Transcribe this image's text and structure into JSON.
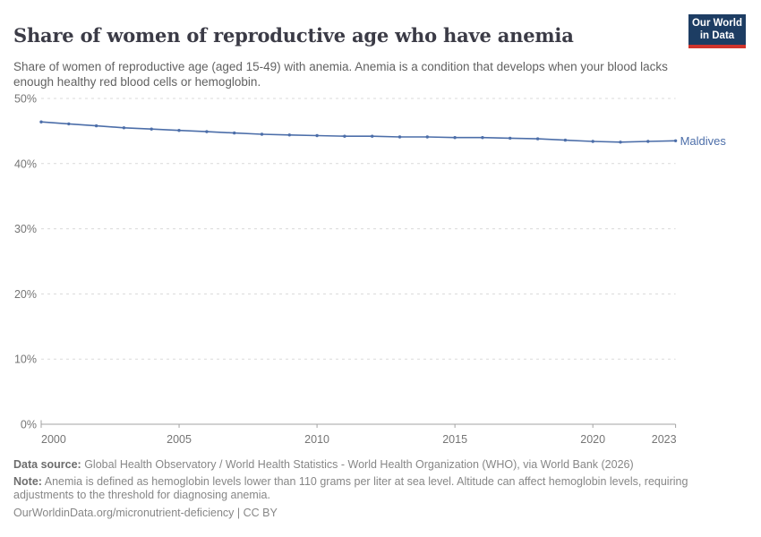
{
  "header": {
    "title": "Share of women of reproductive age who have anemia",
    "subtitle": "Share of women of reproductive age (aged 15-49) with anemia. Anemia is a condition that develops when your blood lacks enough healthy red blood cells or hemoglobin.",
    "logo": {
      "line1": "Our World",
      "line2": "in Data"
    }
  },
  "chart_data": {
    "type": "line",
    "title": "Share of women of reproductive age who have anemia",
    "xlabel": "",
    "ylabel": "",
    "xlim": [
      2000,
      2023
    ],
    "ylim": [
      0,
      50
    ],
    "grid": "horizontal-dashed",
    "legend_position": "end-of-line-label",
    "x_ticks": [
      2000,
      2005,
      2010,
      2015,
      2020,
      2023
    ],
    "x_tick_labels": [
      "2000",
      "2005",
      "2010",
      "2015",
      "2020",
      "2023"
    ],
    "y_ticks": [
      0,
      10,
      20,
      30,
      40,
      50
    ],
    "y_tick_labels": [
      "0%",
      "10%",
      "20%",
      "30%",
      "40%",
      "50%"
    ],
    "series": [
      {
        "name": "Maldives",
        "color": "#4c6ea9",
        "x": [
          2000,
          2001,
          2002,
          2003,
          2004,
          2005,
          2006,
          2007,
          2008,
          2009,
          2010,
          2011,
          2012,
          2013,
          2014,
          2015,
          2016,
          2017,
          2018,
          2019,
          2020,
          2021,
          2022,
          2023
        ],
        "values": [
          46.4,
          46.1,
          45.8,
          45.5,
          45.3,
          45.1,
          44.9,
          44.7,
          44.5,
          44.4,
          44.3,
          44.2,
          44.2,
          44.1,
          44.1,
          44.0,
          44.0,
          43.9,
          43.8,
          43.6,
          43.4,
          43.3,
          43.4,
          43.5
        ]
      }
    ]
  },
  "footer": {
    "data_source_label": "Data source:",
    "data_source_text": " Global Health Observatory / World Health Statistics - World Health Organization (WHO), via World Bank (2026)",
    "note_label": "Note:",
    "note_text": " Anemia is defined as hemoglobin levels lower than 110 grams per liter at sea level. Altitude can affect hemoglobin levels, requiring adjustments to the threshold for diagnosing anemia.",
    "license": "OurWorldinData.org/micronutrient-deficiency | CC BY"
  },
  "colors": {
    "line": "#4c6ea9",
    "grid": "#dadada",
    "axis": "#a3a3a3",
    "tick_label": "#757575",
    "logo_bg": "#1d3d63",
    "logo_red": "#d0342c"
  }
}
